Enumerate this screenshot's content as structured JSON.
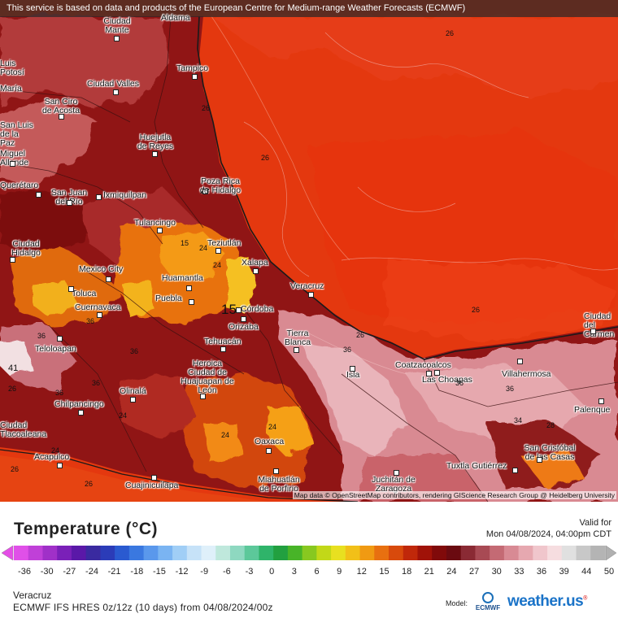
{
  "banner": "This service is based on data and products of the European Centre for Medium-range Weather Forecasts (ECMWF)",
  "attribution": "Map data © OpenStreetMap contributors, rendering GIScience Research Group @ Heidelberg University",
  "legend": {
    "title": "Temperature (°C)",
    "ticks": [
      "-36",
      "-30",
      "-27",
      "-24",
      "-21",
      "-18",
      "-15",
      "-12",
      "-9",
      "-6",
      "-3",
      "0",
      "3",
      "6",
      "9",
      "12",
      "15",
      "18",
      "21",
      "24",
      "27",
      "30",
      "33",
      "36",
      "39",
      "44",
      "50"
    ]
  },
  "valid": {
    "label": "Valid for",
    "time": "Mon 04/08/2024, 04:00pm CDT"
  },
  "location": "Veracruz",
  "run_info": "ECMWF IFS HRES 0z/12z (10 days) from 04/08/2024/00z",
  "model_label": "Model:",
  "model_logo_text": "ECMWF",
  "brand": {
    "name": "weather.us",
    "mark": "®"
  },
  "colors": {
    "ocean": "#e83a12",
    "land_hot": "#8c1414",
    "land_mid": "#c95a5a",
    "highland": "#f07a12",
    "cool_pink": "#e6a6ae"
  },
  "cities": [
    "Aldama",
    "Ciudad Mante",
    "Luis Potosí",
    "Tampico",
    "Ciudad Valles",
    "San Ciro de Acosta",
    "María",
    "Huejutla de Reyes",
    "San Luis de la Paz",
    "Miguel Allende",
    "Poza Rica de Hidalgo",
    "Querétaro",
    "San Juan del Río",
    "Ixmiquilpan",
    "Tulancingo",
    "Ciudad Hidalgo",
    "Teziutlán",
    "Xalapa",
    "Mexico City",
    "Huamantla",
    "Veracruz",
    "Toluca",
    "Puebla",
    "Cuernavaca",
    "Córdoba",
    "Orizaba",
    "Teloloapan",
    "Tehuacán",
    "Tierra Blanca",
    "Heroica Ciudad de Huajuapan de León",
    "Coatzacoalcos",
    "Las Choapas",
    "Villahermosa",
    "Isla",
    "Olinalá",
    "Chilpancingo",
    "Oaxaca",
    "Acapulco",
    "Cuajinicuilapa",
    "Miahuatlán de Porfirio",
    "Juchitán de Zaragoza",
    "Tuxtla Gutiérrez",
    "San Cristóbal de las Casas",
    "Ciudad del Carmen",
    "Palenque",
    "Ciudad Tlacoaleana"
  ],
  "isotherm_labels": [
    "26",
    "26",
    "26",
    "26",
    "24",
    "26",
    "15",
    "24",
    "26",
    "36",
    "26",
    "36",
    "24",
    "24",
    "36",
    "24",
    "34",
    "36",
    "24",
    "36",
    "26",
    "36",
    "36",
    "26",
    "28",
    "41",
    "15",
    "36"
  ]
}
